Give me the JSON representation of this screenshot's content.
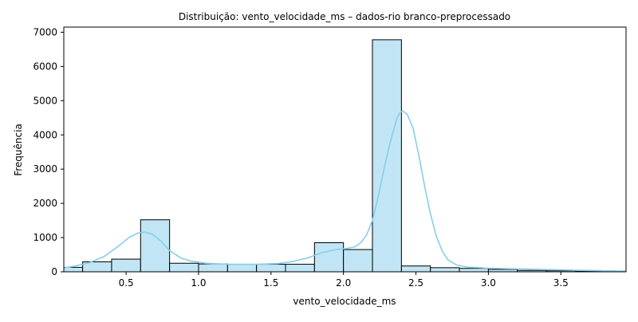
{
  "chart_data": {
    "type": "bar",
    "title": "Distribuição: vento_velocidade_ms – dados-rio branco-preprocessado",
    "xlabel": "vento_velocidade_ms",
    "ylabel": "Frequência",
    "xlim": [
      0.07,
      3.95
    ],
    "ylim": [
      0,
      7150
    ],
    "x_ticks": [
      0.5,
      1.0,
      1.5,
      2.0,
      2.5,
      3.0,
      3.5
    ],
    "x_tick_labels": [
      "0.5",
      "1.0",
      "1.5",
      "2.0",
      "2.5",
      "3.0",
      "3.5"
    ],
    "y_ticks": [
      0,
      1000,
      2000,
      3000,
      4000,
      5000,
      6000,
      7000
    ],
    "y_tick_labels": [
      "0",
      "1000",
      "2000",
      "3000",
      "4000",
      "5000",
      "6000",
      "7000"
    ],
    "bin_edges": [
      0.0,
      0.2,
      0.4,
      0.6,
      0.8,
      1.0,
      1.2,
      1.4,
      1.6,
      1.8,
      2.0,
      2.2,
      2.4,
      2.6,
      2.8,
      3.0,
      3.2,
      3.4,
      3.6,
      3.8,
      4.0
    ],
    "values": [
      130,
      290,
      370,
      1520,
      250,
      230,
      220,
      220,
      220,
      850,
      650,
      6780,
      170,
      120,
      100,
      70,
      40,
      30,
      20,
      15
    ],
    "kde": {
      "x": [
        0.07,
        0.15,
        0.25,
        0.35,
        0.45,
        0.52,
        0.58,
        0.63,
        0.68,
        0.74,
        0.8,
        0.88,
        0.95,
        1.05,
        1.2,
        1.4,
        1.55,
        1.65,
        1.75,
        1.85,
        1.95,
        2.02,
        2.08,
        2.12,
        2.16,
        2.2,
        2.24,
        2.28,
        2.32,
        2.35,
        2.37,
        2.39,
        2.41,
        2.44,
        2.48,
        2.52,
        2.56,
        2.6,
        2.64,
        2.68,
        2.72,
        2.78,
        2.85,
        3.0,
        3.2,
        3.4,
        3.6,
        3.8,
        3.95
      ],
      "y": [
        110,
        170,
        270,
        450,
        760,
        1000,
        1130,
        1160,
        1100,
        900,
        620,
        400,
        310,
        250,
        220,
        220,
        240,
        300,
        400,
        560,
        650,
        680,
        730,
        850,
        1080,
        1500,
        2200,
        3000,
        3750,
        4200,
        4500,
        4650,
        4700,
        4600,
        4200,
        3400,
        2500,
        1700,
        1050,
        620,
        350,
        200,
        140,
        105,
        85,
        65,
        45,
        30,
        20
      ]
    },
    "bar_fill": "#c1e5f4",
    "bar_stroke": "#000000",
    "kde_color": "#87ceeb",
    "grid": false,
    "legend": "none"
  }
}
